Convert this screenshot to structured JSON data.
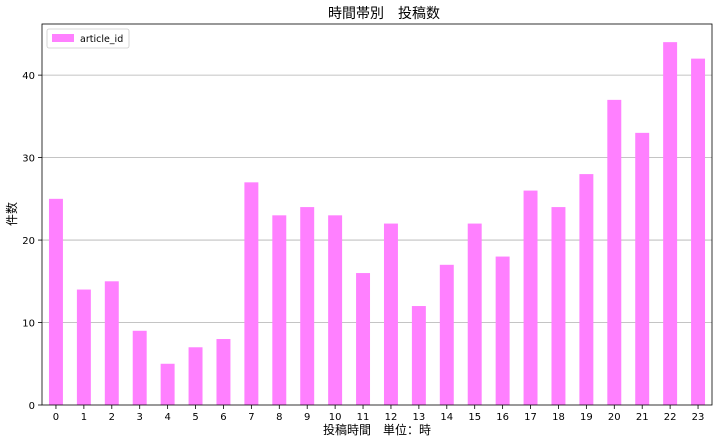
{
  "chart_data": {
    "type": "bar",
    "title": "時間帯別　投稿数",
    "xlabel": "投稿時間　単位：時",
    "ylabel": "件数",
    "categories": [
      "0",
      "1",
      "2",
      "3",
      "4",
      "5",
      "6",
      "7",
      "8",
      "9",
      "10",
      "11",
      "12",
      "13",
      "14",
      "15",
      "16",
      "17",
      "18",
      "19",
      "20",
      "21",
      "22",
      "23"
    ],
    "series": [
      {
        "name": "article_id",
        "color": "#ff80ff",
        "values": [
          25,
          14,
          15,
          9,
          5,
          7,
          8,
          27,
          23,
          24,
          23,
          16,
          22,
          12,
          17,
          22,
          18,
          26,
          24,
          28,
          37,
          33,
          44,
          42
        ]
      }
    ],
    "ylim": [
      0,
      46.2
    ],
    "yticks": [
      0,
      10,
      20,
      30,
      40
    ],
    "grid": "y-major",
    "legend_position": "top-left"
  }
}
